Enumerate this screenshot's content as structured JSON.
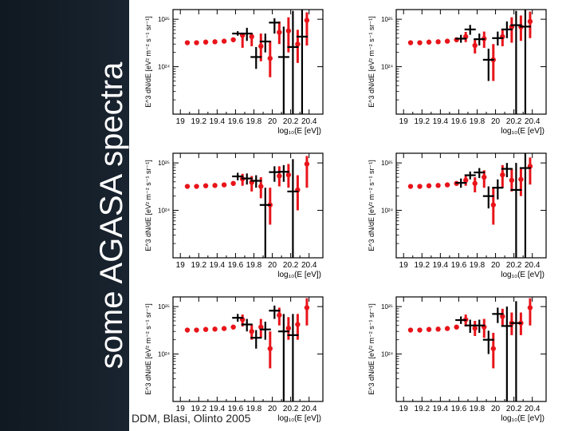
{
  "slide": {
    "title": "some AGASA spectra",
    "caption": "DDM, Blasi, Olinto 2005"
  },
  "colors": {
    "model": "#e8141a",
    "agasa": "#000000",
    "background": "#17202a"
  },
  "chart_data": [
    {
      "type": "scatter",
      "panel": 1,
      "ylabel": "E^3 dN/dE [eV² m⁻² s⁻¹ sr⁻¹]",
      "xlabel": "log₁₀(E [eV])",
      "xlim": [
        18.92,
        20.55
      ],
      "xscale": "linear",
      "yscale": "log",
      "ylim": [
        1e+23,
        1.6e+25
      ],
      "yticks": [
        "10²⁵",
        "10²⁴"
      ],
      "xticks": [
        "19",
        "19.2",
        "19.4",
        "19.6",
        "19.8",
        "20",
        "20.2",
        "20.4"
      ],
      "series": [
        {
          "role": "model",
          "x": [
            19.05,
            19.15,
            19.25,
            19.35,
            19.45,
            19.55,
            19.65,
            19.75,
            19.85,
            19.95,
            20.05,
            20.15,
            20.25,
            20.35
          ],
          "y": [
            3.2e+24,
            3.2e+24,
            3.3e+24,
            3.35e+24,
            3.45e+24,
            3.7e+24,
            4.6e+24,
            4.3e+24,
            2.7e+24,
            1.5e+24,
            5.3e+24,
            5.7e+24,
            3e+24,
            9.5e+24
          ],
          "err_lo": [
            null,
            null,
            null,
            null,
            null,
            3.3e+24,
            2.5e+24,
            2.7e+24,
            1.3e+24,
            6e+23,
            3e+24,
            2e+24,
            1.2e+24,
            2.8e+24
          ],
          "err_hi": [
            null,
            null,
            null,
            null,
            null,
            4.1e+24,
            5.2e+24,
            5e+24,
            5e+24,
            3.5e+24,
            9e+24,
            1.1e+25,
            6e+24,
            1.4e+25
          ]
        },
        {
          "role": "agasa",
          "x": [
            19.65,
            19.75,
            19.85,
            19.95,
            20.05,
            20.15,
            20.25,
            20.35
          ],
          "y": [
            5e+24,
            5e+24,
            1.6e+24,
            3.4e+24,
            8.5e+24,
            1.6e+24,
            2.6e+24,
            4.3e+24
          ],
          "err_lo": [
            4.5e+24,
            3.5e+24,
            9e+23,
            2e+24,
            5e+24,
            1e+23,
            1e+23,
            1e+23
          ],
          "err_hi": [
            5.6e+24,
            6.6e+24,
            2.6e+24,
            5e+24,
            1.05e+25,
            7e+24,
            1.5e+25,
            1.7e+25
          ]
        }
      ]
    },
    {
      "type": "scatter",
      "panel": 2,
      "ylabel": "E^3 dN/dE [eV² m⁻² s⁻¹ sr⁻¹]",
      "xlabel": "log₁₀(E [eV])",
      "xlim": [
        18.92,
        20.55
      ],
      "xscale": "linear",
      "yscale": "log",
      "ylim": [
        1e+23,
        1.6e+25
      ],
      "yticks": [
        "10²⁵",
        "10²⁴"
      ],
      "xticks": [
        "19",
        "19.2",
        "19.4",
        "19.6",
        "19.8",
        "20",
        "20.2",
        "20.4"
      ],
      "series": [
        {
          "role": "model",
          "x": [
            19.05,
            19.15,
            19.25,
            19.35,
            19.45,
            19.55,
            19.65,
            19.75,
            19.85,
            19.95,
            20.05,
            20.15,
            20.25,
            20.35
          ],
          "y": [
            3.2e+24,
            3.2e+24,
            3.3e+24,
            3.35e+24,
            3.45e+24,
            3.7e+24,
            4.3e+24,
            2.8e+24,
            3.9e+24,
            1.4e+24,
            4.3e+24,
            6.9e+24,
            6.9e+24,
            9e+24
          ],
          "err_lo": [
            null,
            null,
            null,
            null,
            null,
            3.3e+24,
            3.3e+24,
            1.9e+24,
            2.5e+24,
            5e+23,
            2.7e+24,
            3.2e+24,
            3.5e+24,
            4e+24
          ],
          "err_hi": [
            null,
            null,
            null,
            null,
            null,
            4.1e+24,
            5.4e+24,
            3.8e+24,
            5.5e+24,
            3e+24,
            6.2e+24,
            1.1e+25,
            1.2e+25,
            1.45e+25
          ]
        },
        {
          "role": "agasa",
          "x": [
            19.65,
            19.75,
            19.85,
            19.95,
            20.05,
            20.15,
            20.25,
            20.35
          ],
          "y": [
            3.9e+24,
            6.1e+24,
            3.8e+24,
            1.4e+24,
            4e+24,
            6.1e+24,
            7.5e+24,
            7e+24
          ],
          "err_lo": [
            3.2e+24,
            4.7e+24,
            2.8e+24,
            5e+23,
            2.8e+24,
            4e+24,
            1e+23,
            1e+23
          ],
          "err_hi": [
            4.7e+24,
            7.6e+24,
            5e+24,
            2.4e+24,
            5.5e+24,
            9e+24,
            1.5e+25,
            1.6e+25
          ]
        }
      ]
    },
    {
      "type": "scatter",
      "panel": 3,
      "ylabel": "E^3 dN/dE [eV² m⁻² s⁻¹ sr⁻¹]",
      "xlabel": "log₁₀(E [eV])",
      "xlim": [
        18.92,
        20.55
      ],
      "xscale": "linear",
      "yscale": "log",
      "ylim": [
        1e+23,
        1.6e+25
      ],
      "yticks": [
        "10²⁵",
        "10²⁴"
      ],
      "xticks": [
        "19",
        "19.2",
        "19.4",
        "19.6",
        "19.8",
        "20",
        "20.2",
        "20.4"
      ],
      "series": [
        {
          "role": "model",
          "x": [
            19.05,
            19.15,
            19.25,
            19.35,
            19.45,
            19.55,
            19.65,
            19.75,
            19.85,
            19.95,
            20.05,
            20.15,
            20.25,
            20.35
          ],
          "y": [
            3.2e+24,
            3.2e+24,
            3.3e+24,
            3.35e+24,
            3.45e+24,
            3.7e+24,
            4.6e+24,
            3.9e+24,
            3.2e+24,
            1.3e+24,
            5.3e+24,
            5.6e+24,
            2.7e+24,
            9.5e+24
          ],
          "err_lo": [
            null,
            null,
            null,
            null,
            null,
            3.3e+24,
            3.3e+24,
            2.5e+24,
            1.8e+24,
            5e+23,
            3.2e+24,
            3e+24,
            1e+24,
            3e+24
          ],
          "err_hi": [
            null,
            null,
            null,
            null,
            null,
            4.1e+24,
            5.9e+24,
            5.3e+24,
            5e+24,
            3e+24,
            8.5e+24,
            9.5e+24,
            5.5e+24,
            1.4e+25
          ]
        },
        {
          "role": "agasa",
          "x": [
            19.65,
            19.75,
            19.85,
            19.95,
            20.05,
            20.15,
            20.25
          ],
          "y": [
            5.2e+24,
            4.7e+24,
            4.2e+24,
            1.3e+24,
            6.4e+24,
            6.5e+24,
            2.5e+24
          ],
          "err_lo": [
            4.3e+24,
            3.5e+24,
            3e+24,
            1e+23,
            4e+24,
            4e+24,
            1e+23
          ],
          "err_hi": [
            6.2e+24,
            6e+24,
            5.5e+24,
            3e+24,
            8.5e+24,
            9e+24,
            1.2e+25
          ]
        }
      ]
    },
    {
      "type": "scatter",
      "panel": 4,
      "ylabel": "E^3 dN/dE [eV² m⁻² s⁻¹ sr⁻¹]",
      "xlabel": "log₁₀(E [eV])",
      "xlim": [
        18.92,
        20.55
      ],
      "xscale": "linear",
      "yscale": "log",
      "ylim": [
        1e+23,
        1.6e+25
      ],
      "yticks": [
        "10²⁵",
        "10²⁴"
      ],
      "xticks": [
        "19",
        "19.2",
        "19.4",
        "19.6",
        "19.8",
        "20",
        "20.2",
        "20.4"
      ],
      "series": [
        {
          "role": "model",
          "x": [
            19.05,
            19.15,
            19.25,
            19.35,
            19.45,
            19.55,
            19.65,
            19.75,
            19.85,
            19.95,
            20.05,
            20.15,
            20.25,
            20.35
          ],
          "y": [
            3.2e+24,
            3.2e+24,
            3.3e+24,
            3.35e+24,
            3.45e+24,
            3.7e+24,
            4.3e+24,
            3.7e+24,
            5e+24,
            1.3e+24,
            5.6e+24,
            4.3e+24,
            4.5e+24,
            8.5e+24
          ],
          "err_lo": [
            null,
            null,
            null,
            null,
            null,
            3.3e+24,
            3.3e+24,
            2.4e+24,
            3e+24,
            5e+23,
            3e+24,
            2.5e+24,
            2e+24,
            3.5e+24
          ],
          "err_hi": [
            null,
            null,
            null,
            null,
            null,
            4.1e+24,
            5.3e+24,
            5e+24,
            7e+24,
            3e+24,
            9e+24,
            7.5e+24,
            8e+24,
            1.3e+25
          ]
        },
        {
          "role": "agasa",
          "x": [
            19.65,
            19.75,
            19.85,
            19.95,
            20.05,
            20.15,
            20.25,
            20.35
          ],
          "y": [
            3.8e+24,
            5.5e+24,
            6.3e+24,
            2e+24,
            3e+24,
            7.5e+24,
            2.7e+24,
            7.8e+24
          ],
          "err_lo": [
            3e+24,
            4.5e+24,
            4.8e+24,
            1.1e+24,
            1.7e+24,
            5e+24,
            1e+23,
            1e+23
          ],
          "err_hi": [
            4.7e+24,
            6.6e+24,
            7.8e+24,
            3.2e+24,
            4.5e+24,
            1e+25,
            1e+25,
            1.6e+25
          ]
        }
      ]
    },
    {
      "type": "scatter",
      "panel": 5,
      "ylabel": "E^3 dN/dE [eV² m⁻² s⁻¹ sr⁻¹]",
      "xlabel": "log₁₀(E [eV])",
      "xlim": [
        18.92,
        20.55
      ],
      "xscale": "linear",
      "yscale": "log",
      "ylim": [
        1e+23,
        1.6e+25
      ],
      "yticks": [
        "10²⁵",
        "10²⁴"
      ],
      "xticks": [
        "19",
        "19.2",
        "19.4",
        "19.6",
        "19.8",
        "20",
        "20.2",
        "20.4"
      ],
      "series": [
        {
          "role": "model",
          "x": [
            19.05,
            19.15,
            19.25,
            19.35,
            19.45,
            19.55,
            19.65,
            19.75,
            19.85,
            19.95,
            20.05,
            20.15,
            20.25,
            20.35
          ],
          "y": [
            3.2e+24,
            3.2e+24,
            3.3e+24,
            3.35e+24,
            3.45e+24,
            3.7e+24,
            5.3e+24,
            3e+24,
            3.7e+24,
            1.3e+24,
            6.6e+24,
            3.5e+24,
            4.2e+24,
            9.5e+24
          ],
          "err_lo": [
            null,
            null,
            null,
            null,
            null,
            3.3e+24,
            3.8e+24,
            2e+24,
            2.2e+24,
            5e+23,
            4e+24,
            2e+24,
            2e+24,
            4e+24
          ],
          "err_hi": [
            null,
            null,
            null,
            null,
            null,
            4.1e+24,
            6.8e+24,
            4.2e+24,
            5.5e+24,
            3e+24,
            9.5e+24,
            6e+24,
            7e+24,
            1.5e+25
          ]
        },
        {
          "role": "agasa",
          "x": [
            19.65,
            19.75,
            19.85,
            19.95,
            20.05,
            20.15,
            20.25
          ],
          "y": [
            5.8e+24,
            4.2e+24,
            2.2e+24,
            3.3e+24,
            8.2e+24,
            3e+24,
            2.5e+24
          ],
          "err_lo": [
            4.8e+24,
            3e+24,
            1.3e+24,
            2e+24,
            5.5e+24,
            1e+23,
            1e+23
          ],
          "err_hi": [
            7e+24,
            5.5e+24,
            3.2e+24,
            4.8e+24,
            1.05e+25,
            7e+24,
            7e+24
          ]
        }
      ]
    },
    {
      "type": "scatter",
      "panel": 6,
      "ylabel": "E^3 dN/dE [eV² m⁻² s⁻¹ sr⁻¹]",
      "xlabel": "log₁₀(E [eV])",
      "xlim": [
        18.92,
        20.55
      ],
      "xscale": "linear",
      "yscale": "log",
      "ylim": [
        1e+23,
        1.6e+25
      ],
      "yticks": [
        "10²⁵",
        "10²⁴"
      ],
      "xticks": [
        "19",
        "19.2",
        "19.4",
        "19.6",
        "19.8",
        "20",
        "20.2",
        "20.4"
      ],
      "series": [
        {
          "role": "model",
          "x": [
            19.05,
            19.15,
            19.25,
            19.35,
            19.45,
            19.55,
            19.65,
            19.75,
            19.85,
            19.95,
            20.05,
            20.15,
            20.25,
            20.35
          ],
          "y": [
            3.2e+24,
            3.2e+24,
            3.3e+24,
            3.35e+24,
            3.45e+24,
            3.7e+24,
            5.3e+24,
            3.5e+24,
            3.7e+24,
            1.3e+24,
            6.2e+24,
            4.5e+24,
            4.5e+24,
            9.5e+24
          ],
          "err_lo": [
            null,
            null,
            null,
            null,
            null,
            3.3e+24,
            3.8e+24,
            2.4e+24,
            2.2e+24,
            5e+23,
            3.8e+24,
            2.5e+24,
            2.5e+24,
            4e+24
          ],
          "err_hi": [
            null,
            null,
            null,
            null,
            null,
            4.1e+24,
            6.8e+24,
            5e+24,
            5.5e+24,
            2.8e+24,
            9e+24,
            7.5e+24,
            7.5e+24,
            1.5e+25
          ]
        },
        {
          "role": "agasa",
          "x": [
            19.65,
            19.75,
            19.85,
            19.95,
            20.05,
            20.15,
            20.25
          ],
          "y": [
            5.2e+24,
            4e+24,
            4e+24,
            2e+24,
            7e+24,
            3.9e+24,
            4.5e+24
          ],
          "err_lo": [
            4.3e+24,
            2.8e+24,
            2.8e+24,
            1e+24,
            4.5e+24,
            1e+23,
            1e+23
          ],
          "err_hi": [
            6.2e+24,
            5.3e+24,
            5.3e+24,
            3.1e+24,
            9.5e+24,
            1e+25,
            1.3e+25
          ]
        }
      ]
    }
  ]
}
